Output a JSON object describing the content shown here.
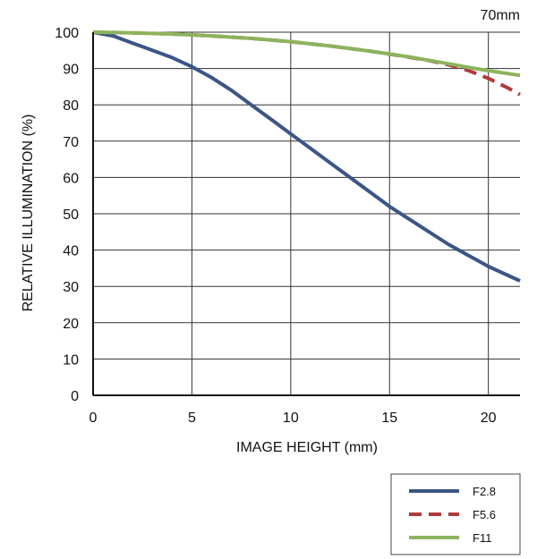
{
  "chart_data": {
    "type": "line",
    "title": "70mm",
    "xlabel": "IMAGE HEIGHT (mm)",
    "ylabel": "RELATIVE ILLUMINATION (%)",
    "xlim": [
      0,
      21.6
    ],
    "ylim": [
      0,
      100
    ],
    "xticks": [
      0,
      5,
      10,
      15,
      20
    ],
    "yticks": [
      0,
      10,
      20,
      30,
      40,
      50,
      60,
      70,
      80,
      90,
      100
    ],
    "grid": true,
    "legend_position": "bottom-right",
    "series": [
      {
        "name": "F2.8",
        "color": "#3b5586",
        "style": "solid",
        "x": [
          0,
          1,
          2,
          3,
          4,
          5,
          6,
          7,
          8,
          9,
          10,
          11,
          12,
          13,
          14,
          15,
          16,
          17,
          18,
          19,
          20,
          21,
          21.6
        ],
        "y": [
          100,
          99,
          97,
          95,
          93,
          90.5,
          87.5,
          84,
          80,
          76,
          72,
          68,
          64,
          60,
          56,
          52,
          48.5,
          45,
          41.5,
          38.5,
          35.5,
          33,
          31.5
        ]
      },
      {
        "name": "F5.6",
        "color": "#b03a3a",
        "style": "dashed",
        "x": [
          0,
          2,
          4,
          6,
          8,
          10,
          12,
          14,
          16,
          17,
          18,
          19,
          20,
          21,
          21.6
        ],
        "y": [
          100,
          99.8,
          99.5,
          99,
          98.3,
          97.4,
          96.2,
          94.8,
          93.1,
          92.2,
          91,
          89.4,
          87.3,
          84.6,
          82.8
        ]
      },
      {
        "name": "F11",
        "color": "#8db35d",
        "style": "solid",
        "x": [
          0,
          2,
          4,
          6,
          8,
          10,
          12,
          14,
          16,
          18,
          19,
          20,
          21,
          21.6
        ],
        "y": [
          100,
          99.8,
          99.5,
          99,
          98.3,
          97.4,
          96.2,
          94.8,
          93.2,
          91.3,
          90.3,
          89.4,
          88.6,
          88.1
        ]
      }
    ]
  }
}
